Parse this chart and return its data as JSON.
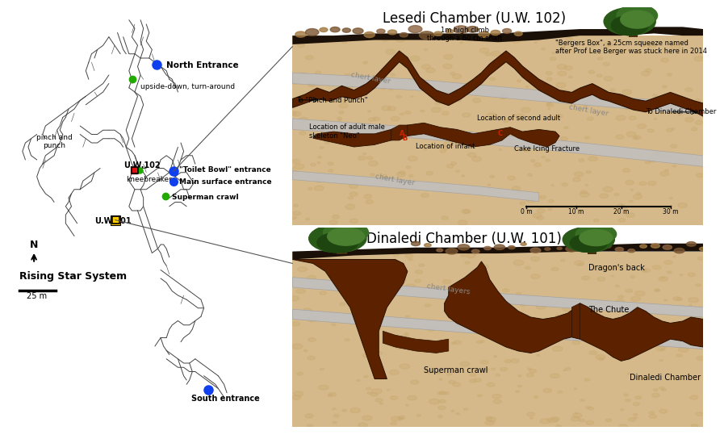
{
  "lesedi_title": "Lesedi Chamber (U.W. 102)",
  "dinaledi_title": "Dinaledi Chamber (U.W. 101)",
  "map_labels": {
    "north_entrance": "North Entrance",
    "upside_down": "upside-down, turn-around",
    "pinch_punch": "pinch and\npunch",
    "uw102": "U.W.102",
    "toilet_bowl": "\"Toilet Bowl\" entrance",
    "main_surface": "Main surface entrance",
    "kneebreaker": "kneebreaker",
    "superman": "Superman crawl",
    "uw101": "U.W.101",
    "south_entrance": "South entrance",
    "rising_star": "Rising Star System",
    "scale": "25 m"
  },
  "lesedi_labels": {
    "chert1": "chert layer",
    "chert2": "chert layer",
    "chert3": "chert layer",
    "to_pinch": "To \"Pinch and Punch\"",
    "to_dinaledi": "To Dinaledi Chamber",
    "climb": "1m high climb\nthrough a 60 cm shaft",
    "bergers": "\"Bergers Box\", a 25cm squeeze named\nafter Prof Lee Berger was stuck here in 2014",
    "neo": "Location of adult male\nskeleton \"Neo\"",
    "second_adult": "Location of second adult",
    "infant": "Location of infant",
    "cake_icing": "Cake Icing Fracture",
    "scale0": "0 m",
    "scale10": "10 m",
    "scale20": "20 m",
    "scale30": "30 m"
  },
  "dinaledi_labels": {
    "chert": "chert layers",
    "dragon_back": "Dragon's back",
    "chute": "The Chute",
    "superman": "Superman crawl",
    "dinaledi_chamber": "Dinaledi Chamber"
  },
  "colors": {
    "background": "#ffffff",
    "cave_fill": "#5c2200",
    "rock_bg": "#d9bc97",
    "rock_stipple": "#c8a87a",
    "rock_bottom": "#c4a882",
    "chert": "#b8b8b8",
    "chert_edge": "#999999",
    "surface_dark": "#1a1008",
    "text": "#000000",
    "red_text": "#cc2200",
    "tree_trunk": "#4a2e10",
    "tree_leaves": "#2a5a18",
    "tree_leaves2": "#1e4510",
    "north_dot": "#1040ee",
    "green_dot": "#22aa00",
    "red_dot": "#dd1111",
    "yellow_square": "#ffcc00",
    "map_line": "#444444",
    "chert_text": "#888888"
  }
}
